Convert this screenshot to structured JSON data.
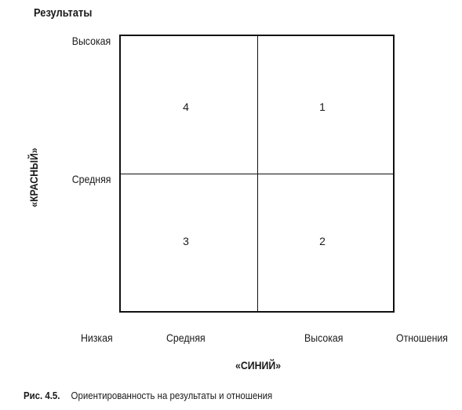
{
  "y_axis": {
    "title": "Результаты",
    "name": "«КРАСНЫЙ»",
    "ticks": [
      "Высокая",
      "Средняя"
    ]
  },
  "x_axis": {
    "title": "Отношения",
    "name": "«СИНИЙ»",
    "ticks": [
      "Низкая",
      "Средняя",
      "Высокая"
    ]
  },
  "quadrants": {
    "top_left": "4",
    "top_right": "1",
    "bottom_left": "3",
    "bottom_right": "2"
  },
  "caption": {
    "number": "Рис. 4.5.",
    "text": "Ориентированность на результаты и отношения"
  }
}
